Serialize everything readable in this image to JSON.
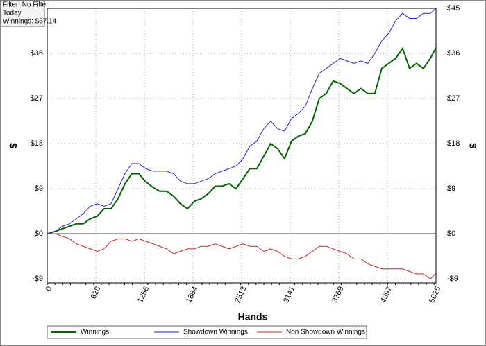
{
  "info": {
    "lines": [
      "Filter: No Filter",
      "Today",
      "Winnings: $37.14"
    ]
  },
  "chart_data": {
    "type": "line",
    "x_label": "Hands",
    "y_label": "$",
    "x": [
      0,
      108,
      196,
      287,
      377,
      466,
      556,
      646,
      735,
      825,
      915,
      1005,
      1094,
      1184,
      1274,
      1364,
      1453,
      1543,
      1633,
      1722,
      1812,
      1902,
      1991,
      2081,
      2171,
      2261,
      2350,
      2440,
      2530,
      2619,
      2709,
      2799,
      2888,
      2978,
      3068,
      3157,
      3247,
      3337,
      3427,
      3516,
      3606,
      3696,
      3786,
      3875,
      3965,
      4055,
      4144,
      4234,
      4324,
      4414,
      4503,
      4593,
      4683,
      4773,
      4862,
      4952,
      5025
    ],
    "series": [
      {
        "name": "Winnings",
        "color": "#006400",
        "values": [
          0,
          0.5,
          1,
          1.5,
          2,
          2,
          3,
          3.5,
          5,
          5,
          7,
          10,
          12,
          12,
          10.4,
          9.3,
          8.5,
          8.5,
          7.5,
          6,
          5,
          6.5,
          7,
          8,
          9.5,
          9.5,
          10,
          9,
          11,
          13,
          13,
          15.5,
          18,
          17,
          15,
          18.5,
          19.5,
          20,
          22.5,
          27,
          28,
          30.5,
          30,
          29,
          28,
          29,
          28,
          28,
          33,
          34,
          35,
          37,
          33,
          34,
          33,
          35,
          37.14
        ]
      },
      {
        "name": "Showdown Winnings",
        "color": "#2222cc",
        "values": [
          0,
          0.5,
          1.5,
          2,
          3,
          4,
          5.5,
          6,
          5.5,
          6,
          9,
          12,
          14,
          14,
          13,
          12.5,
          12.5,
          12.5,
          12,
          10.5,
          10,
          10,
          10.5,
          11,
          12,
          12.5,
          13,
          13.5,
          15,
          17.5,
          18.5,
          21,
          22.5,
          21,
          20.5,
          23,
          24,
          25.5,
          29,
          32,
          33,
          34,
          35,
          34.5,
          34,
          34.5,
          34,
          36,
          38.5,
          40,
          42.5,
          44,
          43,
          43,
          44,
          44,
          45
        ]
      },
      {
        "name": "Non Showdown Winnings",
        "color": "#cc2222",
        "values": [
          0,
          0,
          -0.5,
          -1,
          -2,
          -2.5,
          -3,
          -3.5,
          -3,
          -1.5,
          -1,
          -1,
          -1.5,
          -1,
          -1.5,
          -2,
          -2.5,
          -3,
          -4,
          -3.5,
          -3,
          -3,
          -2.5,
          -2.5,
          -2,
          -2.5,
          -3,
          -2.5,
          -2,
          -2.5,
          -2.5,
          -3.5,
          -3,
          -3.5,
          -4.5,
          -5,
          -5,
          -4.5,
          -3.5,
          -2.5,
          -2.5,
          -3,
          -3.5,
          -4,
          -5,
          -5,
          -6,
          -6.5,
          -7,
          -7,
          -7,
          -7,
          -7.5,
          -8,
          -8,
          -9,
          -7.86
        ]
      }
    ],
    "xlim": [
      0,
      5025
    ],
    "xticks": [
      0,
      628,
      1256,
      1884,
      2513,
      3141,
      3769,
      4397,
      5025
    ],
    "ylim": [
      -9.8,
      45
    ],
    "yticks": [
      {
        "value": -9,
        "label": "-$9"
      },
      {
        "value": 0,
        "label": "$0"
      },
      {
        "value": 9,
        "label": "$9"
      },
      {
        "value": 18,
        "label": "$18"
      },
      {
        "value": 27,
        "label": "$27"
      },
      {
        "value": 36,
        "label": "$36"
      },
      {
        "value": 45,
        "label": "$45"
      }
    ],
    "grid": true
  }
}
